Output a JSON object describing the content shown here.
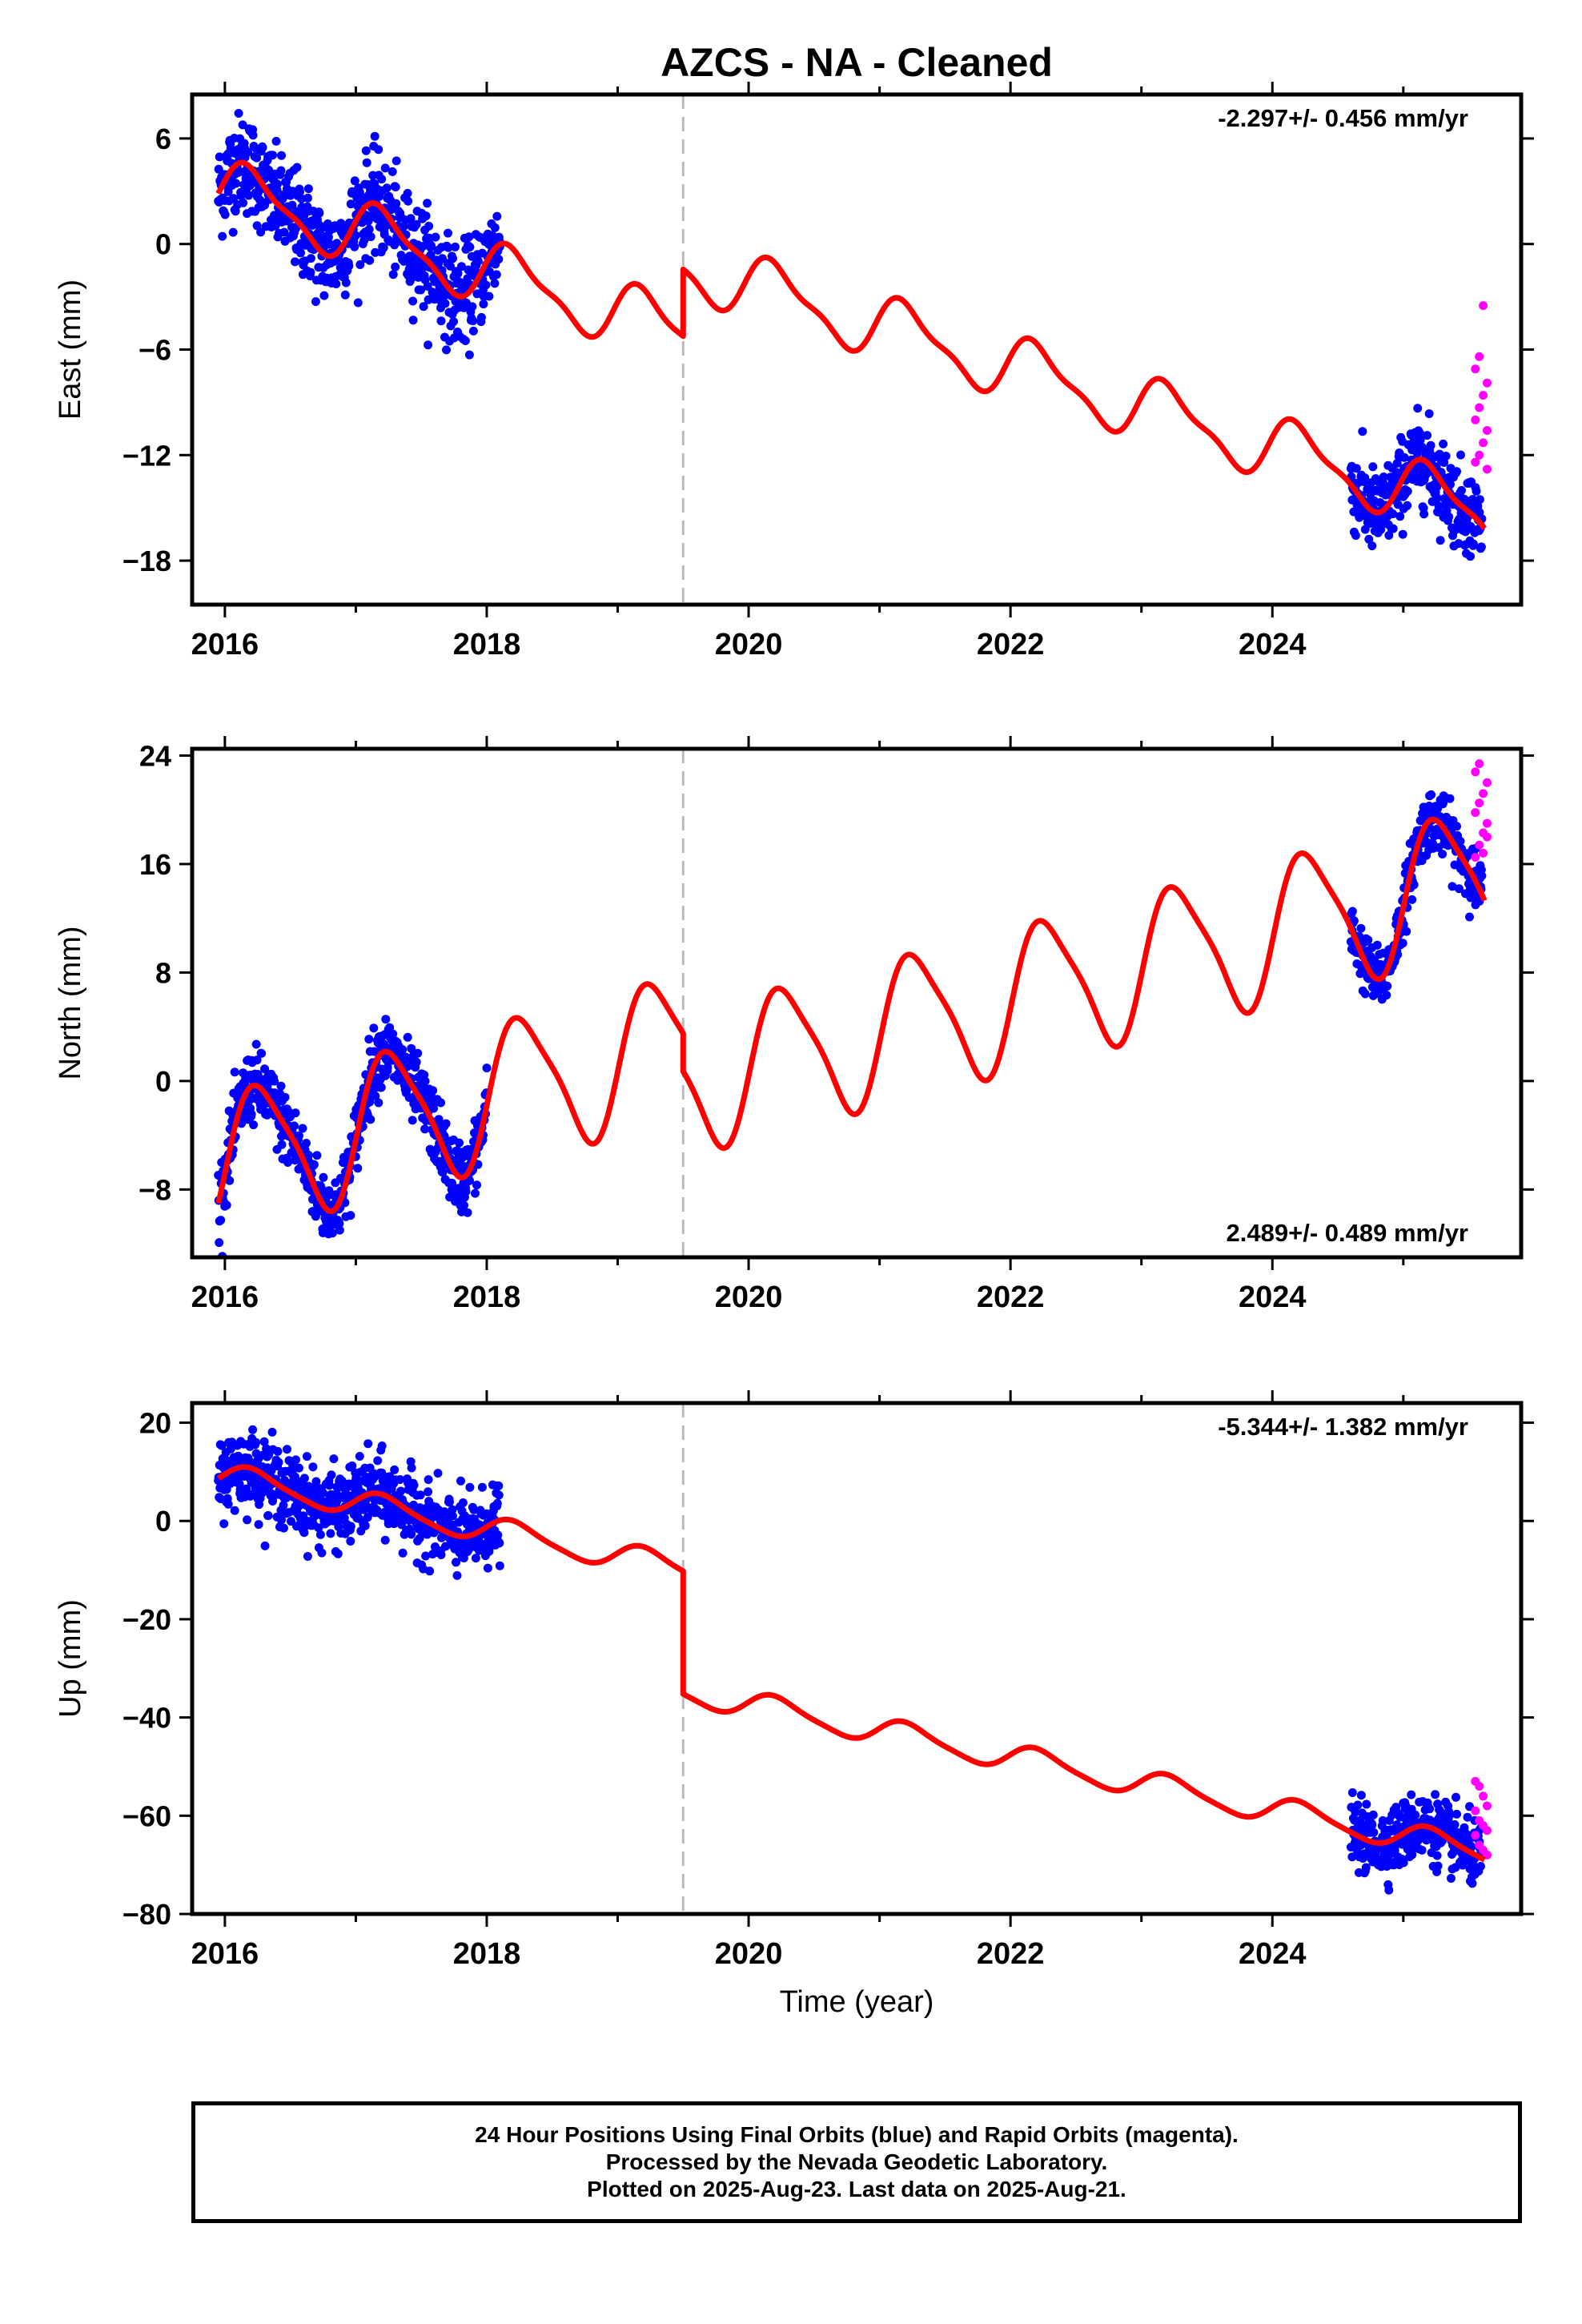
{
  "title": "AZCS  - NA - Cleaned",
  "xlabel": "Time (year)",
  "footer": {
    "line1": "24 Hour Positions Using Final Orbits (blue) and Rapid Orbits (magenta).",
    "line2": "Processed by the Nevada Geodetic Laboratory.",
    "line3": "Plotted on 2025-Aug-23. Last data on 2025-Aug-21."
  },
  "colors": {
    "final": "#0000ff",
    "rapid": "#ff00ff",
    "model": "#ff0000",
    "event": "#bbbbbb"
  },
  "chart_data": [
    {
      "type": "scatter",
      "component": "east",
      "ylabel": "East (mm)",
      "rate": "-2.297+/- 0.456 mm/yr",
      "xlim": [
        2015.75,
        2025.9
      ],
      "ylim": [
        -20.5,
        8.5
      ],
      "yticks": [
        6,
        0,
        -6,
        -12,
        -18
      ],
      "xticks": [
        2016,
        2018,
        2020,
        2022,
        2024
      ],
      "event_line": 2019.5,
      "model": {
        "offset": 3.0,
        "rate": -2.297,
        "annual_cos": 0.4,
        "annual_sin": 1.6,
        "semi_cos": 0.2,
        "semi_sin": 0.5,
        "step_at": 2019.5,
        "step": 3.8
      },
      "final_segments": [
        {
          "start": 2015.95,
          "end": 2018.1,
          "scatter": 1.4
        },
        {
          "start": 2024.6,
          "end": 2025.6,
          "scatter": 1.2
        }
      ],
      "rapid_segment": {
        "start": 2025.55,
        "end": 2025.64,
        "values": [
          -12.4,
          -12.0,
          -11.3,
          -10.6,
          -10.0,
          -9.3,
          -8.6,
          -7.9,
          -7.1,
          -6.4,
          -3.5,
          -12.8
        ]
      }
    },
    {
      "type": "scatter",
      "component": "north",
      "ylabel": "North (mm)",
      "rate": "2.489+/- 0.489 mm/yr",
      "xlim": [
        2015.75,
        2025.9
      ],
      "ylim": [
        -13,
        24.5
      ],
      "yticks": [
        24,
        16,
        8,
        0,
        -8
      ],
      "xticks": [
        2016,
        2018,
        2020,
        2022,
        2024
      ],
      "event_line": 2019.5,
      "model": {
        "offset": -6.0,
        "rate": 2.489,
        "annual_cos": -0.8,
        "annual_sin": 5.0,
        "semi_cos": 0.0,
        "semi_sin": 1.0,
        "step_at": 2019.5,
        "step": -2.8
      },
      "final_segments": [
        {
          "start": 2015.95,
          "end": 2018.0,
          "scatter": 1.3
        },
        {
          "start": 2024.6,
          "end": 2025.6,
          "scatter": 1.1
        }
      ],
      "rapid_segment": {
        "start": 2025.55,
        "end": 2025.64,
        "values": [
          16.5,
          17.4,
          18.3,
          19.0,
          19.8,
          20.5,
          21.2,
          22.0,
          22.8,
          23.4,
          16.8,
          18.0
        ]
      }
    },
    {
      "type": "scatter",
      "component": "up",
      "ylabel": "Up (mm)",
      "rate": "-5.344+/- 1.382 mm/yr",
      "xlim": [
        2015.75,
        2025.9
      ],
      "ylim": [
        -80,
        24
      ],
      "yticks": [
        20,
        0,
        -20,
        -40,
        -60,
        -80
      ],
      "xticks": [
        2016,
        2018,
        2020,
        2022,
        2024
      ],
      "event_line": 2019.5,
      "model": {
        "offset": 9.0,
        "rate": -5.344,
        "annual_cos": 0.5,
        "annual_sin": 2.5,
        "semi_cos": 0.0,
        "semi_sin": 0.5,
        "step_at": 2019.5,
        "step": -25.0
      },
      "final_segments": [
        {
          "start": 2015.95,
          "end": 2018.1,
          "scatter": 3.8
        },
        {
          "start": 2024.6,
          "end": 2025.6,
          "scatter": 3.3
        }
      ],
      "rapid_segment": {
        "start": 2025.55,
        "end": 2025.64,
        "values": [
          -53,
          -54,
          -56,
          -58,
          -59,
          -61,
          -62,
          -63,
          -64,
          -66,
          -67,
          -68
        ]
      }
    }
  ]
}
